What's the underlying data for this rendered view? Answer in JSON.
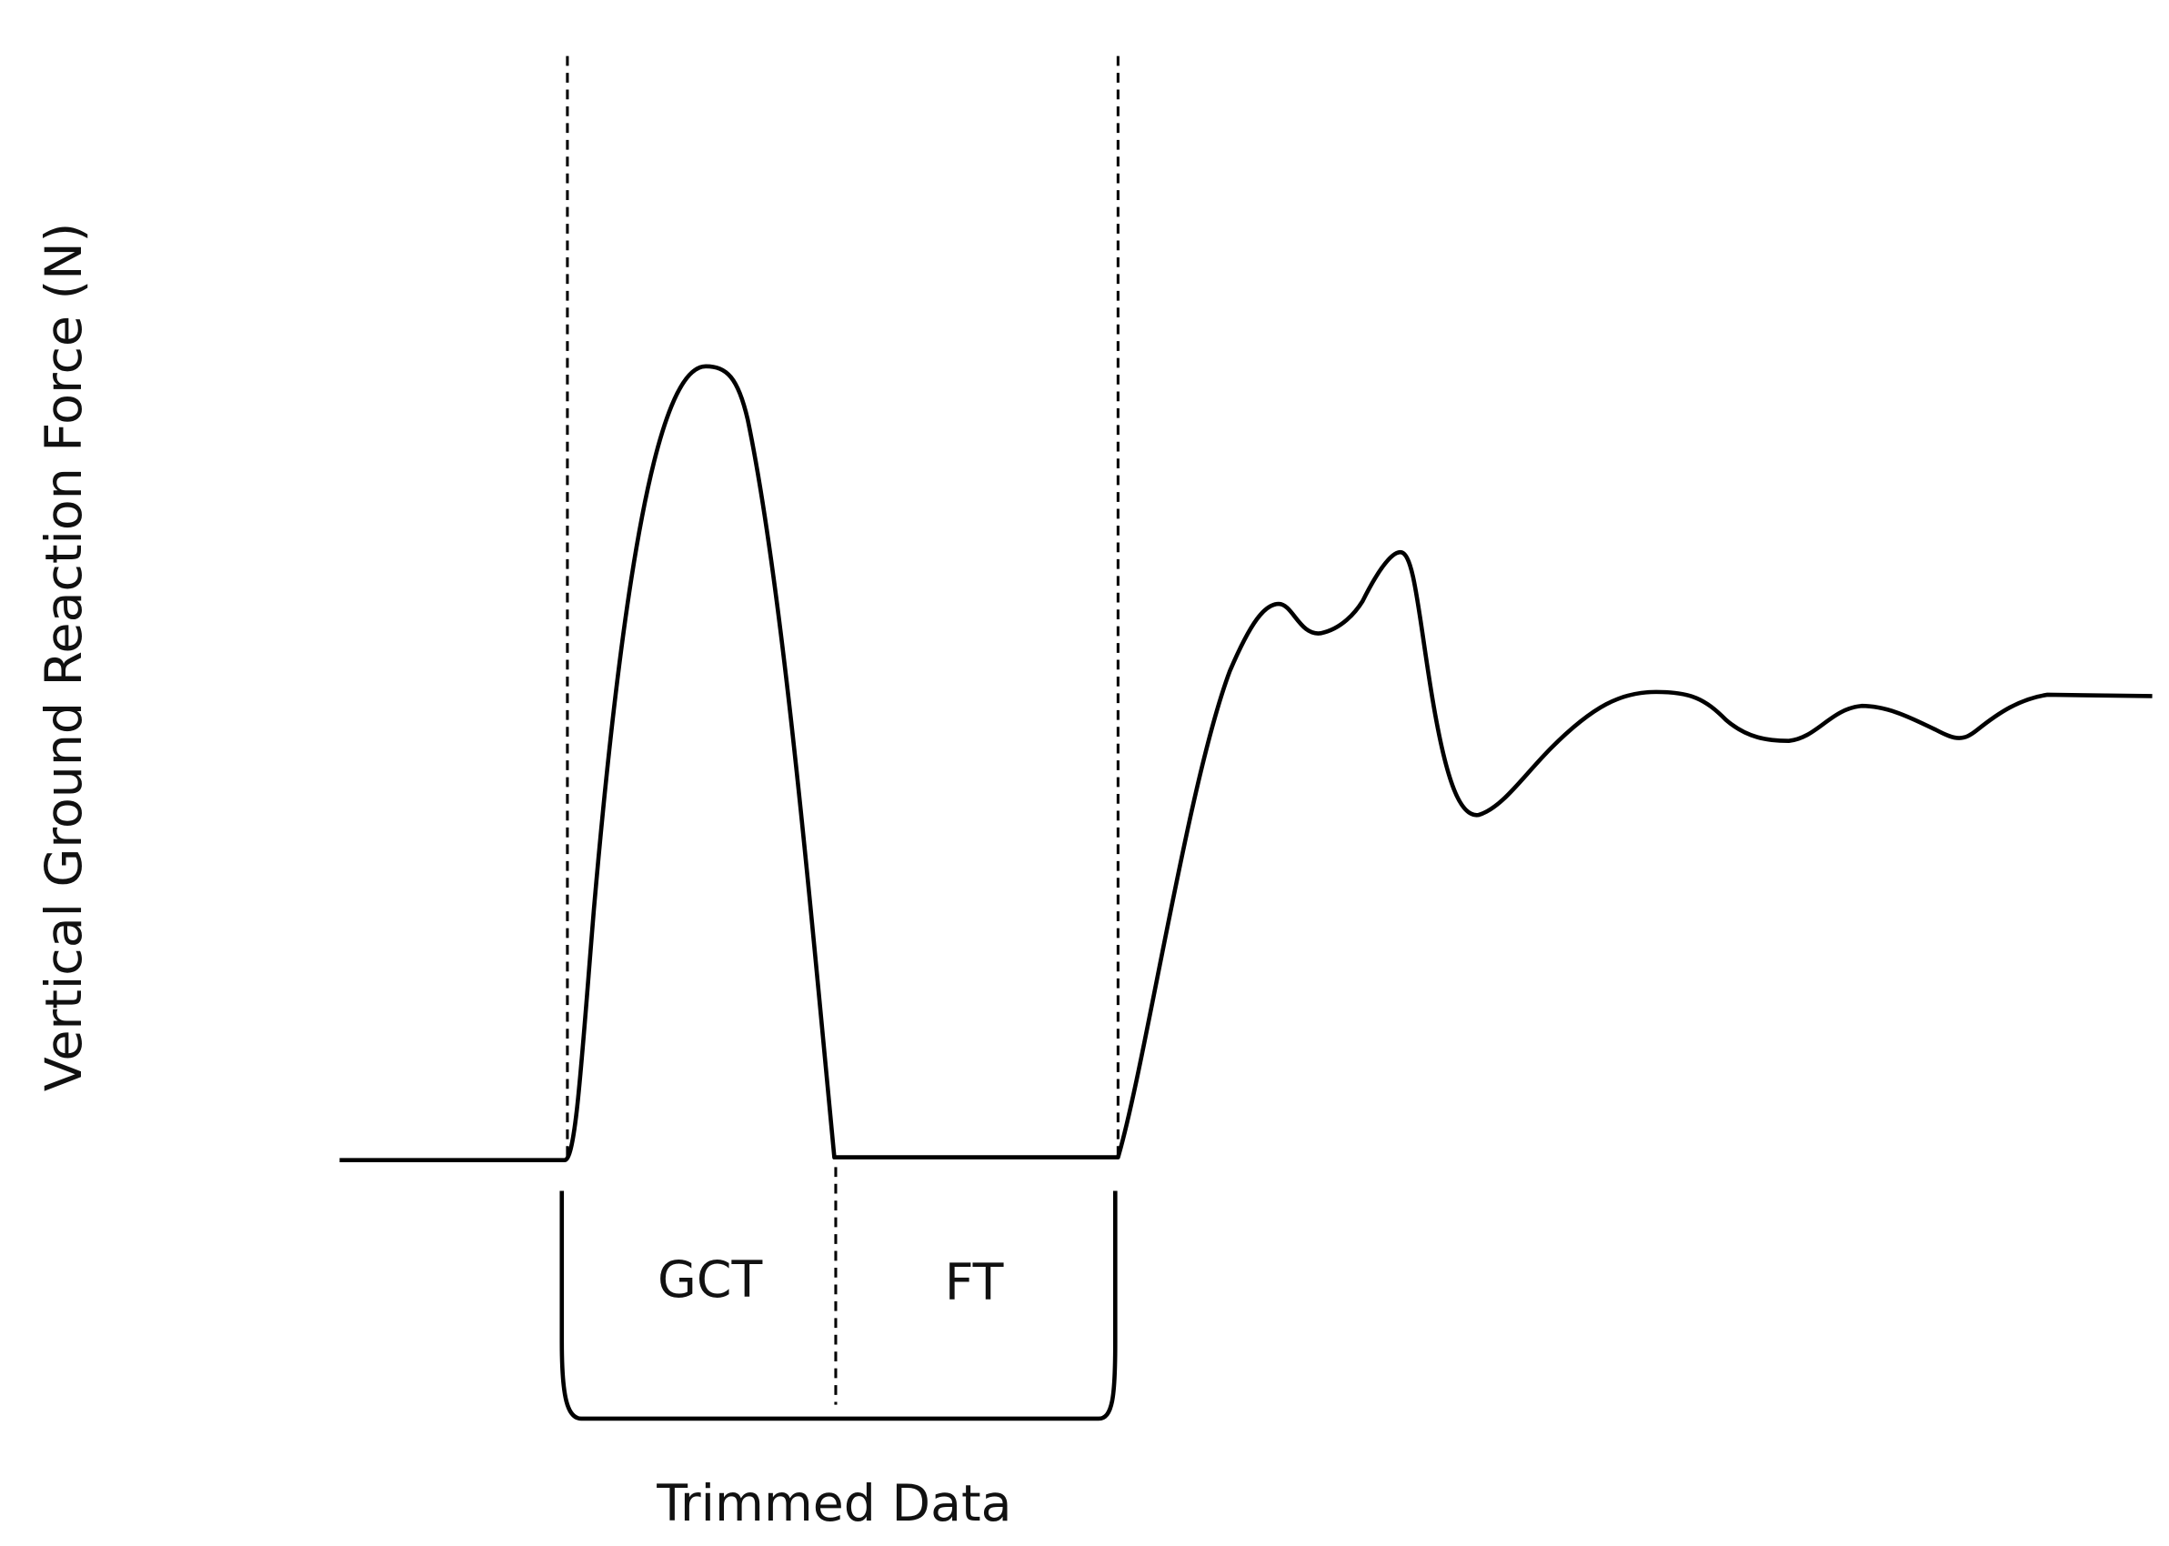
{
  "y_axis_label": "Vertical Ground Reaction Force (N)",
  "segments": [
    {
      "label": "GCT"
    },
    {
      "label": "FT"
    }
  ],
  "bracket_label": "Trimmed Data"
}
